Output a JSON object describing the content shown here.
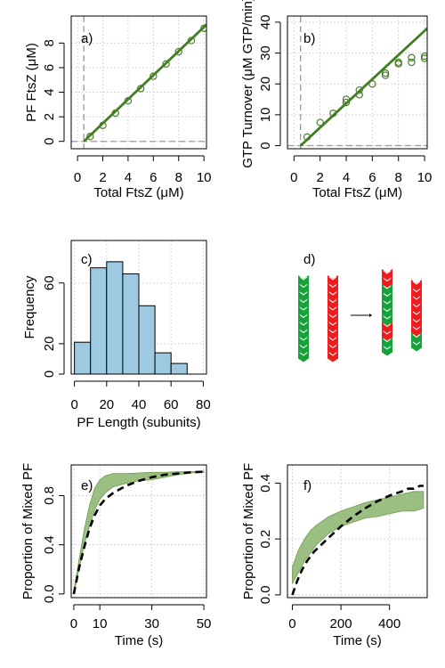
{
  "chart_data": [
    {
      "id": "a",
      "type": "scatter",
      "tag": "a)",
      "xlabel": "Total FtsZ (μM)",
      "ylabel": "PF FtsZ (μM)",
      "xlim": [
        -0.5,
        10.2
      ],
      "ylim": [
        -0.6,
        10.2
      ],
      "xticks": [
        0,
        2,
        4,
        6,
        8,
        10
      ],
      "yticks": [
        0,
        2,
        4,
        6,
        8
      ],
      "grid": true,
      "points": [
        [
          1,
          0.4
        ],
        [
          2,
          1.3
        ],
        [
          3,
          2.3
        ],
        [
          4,
          3.3
        ],
        [
          5,
          4.3
        ],
        [
          6,
          5.3
        ],
        [
          7,
          6.3
        ],
        [
          8,
          7.3
        ],
        [
          9,
          8.2
        ],
        [
          10,
          9.2
        ]
      ],
      "fit_line": [
        [
          0.5,
          0
        ],
        [
          10.2,
          9.5
        ]
      ],
      "vline_x": 0.5,
      "hline_y": 0,
      "colors": {
        "points": "#4a7d2a",
        "fit": "#3f7f1f",
        "ref": "#9a9a9a",
        "grid": "#d8d8d8"
      }
    },
    {
      "id": "b",
      "type": "scatter",
      "tag": "b)",
      "xlabel": "Total FtsZ (μM)",
      "ylabel": "GTP Turnover (μM GTP/min)",
      "xlim": [
        -0.5,
        10.2
      ],
      "ylim": [
        -1,
        42
      ],
      "xticks": [
        0,
        2,
        4,
        6,
        8,
        10
      ],
      "yticks": [
        0,
        10,
        20,
        30,
        40
      ],
      "grid": true,
      "points": [
        [
          1,
          2.8
        ],
        [
          2,
          7.5
        ],
        [
          3,
          10.5
        ],
        [
          4,
          14.0
        ],
        [
          4,
          15.0
        ],
        [
          5,
          16.5
        ],
        [
          5,
          18.0
        ],
        [
          6,
          20.0
        ],
        [
          7,
          22.8
        ],
        [
          7,
          23.5
        ],
        [
          8,
          26.5
        ],
        [
          8,
          27.0
        ],
        [
          9,
          27.0
        ],
        [
          9,
          28.5
        ],
        [
          10,
          28.3
        ],
        [
          10,
          29.0
        ]
      ],
      "fit_line": [
        [
          0.5,
          0
        ],
        [
          10.2,
          38
        ]
      ],
      "vline_x": 0.5,
      "hline_y": 0,
      "colors": {
        "points": "#4a7d2a",
        "fit": "#3f7f1f",
        "ref": "#9a9a9a",
        "grid": "#d8d8d8"
      }
    },
    {
      "id": "c",
      "type": "bar",
      "tag": "c)",
      "xlabel": "PF Length (subunits)",
      "ylabel": "Frequency",
      "xlim": [
        -2,
        82
      ],
      "ylim": [
        0,
        88
      ],
      "xticks": [
        0,
        20,
        40,
        60,
        80
      ],
      "yticks": [
        0,
        20,
        60
      ],
      "grid": true,
      "bin_edges": [
        0,
        10,
        20,
        30,
        40,
        50,
        60,
        70
      ],
      "values": [
        21,
        70,
        74,
        66,
        45,
        14,
        7
      ],
      "colors": {
        "bar": "#9ecae1",
        "edge": "#000000",
        "grid": "#d8d8d8"
      }
    },
    {
      "id": "e",
      "type": "line",
      "tag": "e)",
      "xlabel": "Time (s)",
      "ylabel": "Proportion of Mixed PF",
      "xlim": [
        -1,
        51
      ],
      "ylim": [
        -0.03,
        1.05
      ],
      "xticks": [
        0,
        10,
        30,
        50
      ],
      "yticks": [
        0.0,
        0.4,
        0.8
      ],
      "ytick_labels": [
        "0.0",
        "0.4",
        "0.8"
      ],
      "grid": true,
      "band_upper": [
        [
          0,
          0.02
        ],
        [
          2,
          0.28
        ],
        [
          4,
          0.52
        ],
        [
          6,
          0.72
        ],
        [
          8,
          0.86
        ],
        [
          10,
          0.93
        ],
        [
          12,
          0.96
        ],
        [
          15,
          0.98
        ],
        [
          20,
          0.98
        ],
        [
          25,
          0.985
        ],
        [
          30,
          0.99
        ],
        [
          35,
          0.99
        ],
        [
          40,
          0.995
        ],
        [
          45,
          0.995
        ],
        [
          50,
          1.0
        ]
      ],
      "band_lower": [
        [
          50,
          0.99
        ],
        [
          45,
          0.985
        ],
        [
          40,
          0.97
        ],
        [
          35,
          0.95
        ],
        [
          30,
          0.93
        ],
        [
          25,
          0.92
        ],
        [
          20,
          0.9
        ],
        [
          15,
          0.87
        ],
        [
          12,
          0.82
        ],
        [
          10,
          0.77
        ],
        [
          8,
          0.68
        ],
        [
          6,
          0.55
        ],
        [
          4,
          0.4
        ],
        [
          2,
          0.2
        ],
        [
          0,
          0.0
        ]
      ],
      "dashed_curve": [
        [
          0,
          0.0
        ],
        [
          2,
          0.21
        ],
        [
          4,
          0.38
        ],
        [
          6,
          0.53
        ],
        [
          8,
          0.64
        ],
        [
          10,
          0.72
        ],
        [
          12,
          0.77
        ],
        [
          15,
          0.82
        ],
        [
          20,
          0.88
        ],
        [
          25,
          0.92
        ],
        [
          30,
          0.95
        ],
        [
          35,
          0.97
        ],
        [
          40,
          0.98
        ],
        [
          45,
          0.99
        ],
        [
          50,
          0.995
        ]
      ],
      "colors": {
        "band": "#9bbf82",
        "band_edge": "#6f9f4f",
        "curve": "#000000",
        "grid": "#d8d8d8"
      }
    },
    {
      "id": "f",
      "type": "line",
      "tag": "f)",
      "xlabel": "Time (s)",
      "ylabel": "Proportion of Mixed PF",
      "xlim": [
        -20,
        555
      ],
      "ylim": [
        -0.01,
        0.465
      ],
      "xticks": [
        0,
        200,
        400
      ],
      "yticks": [
        0.0,
        0.2,
        0.4
      ],
      "ytick_labels": [
        "0.0",
        "0.2",
        "0.4"
      ],
      "grid": true,
      "band_upper": [
        [
          0,
          0.1
        ],
        [
          25,
          0.16
        ],
        [
          50,
          0.2
        ],
        [
          75,
          0.23
        ],
        [
          100,
          0.25
        ],
        [
          150,
          0.28
        ],
        [
          200,
          0.3
        ],
        [
          250,
          0.315
        ],
        [
          300,
          0.33
        ],
        [
          350,
          0.34
        ],
        [
          400,
          0.35
        ],
        [
          450,
          0.36
        ],
        [
          500,
          0.37
        ],
        [
          540,
          0.37
        ]
      ],
      "band_lower": [
        [
          540,
          0.31
        ],
        [
          500,
          0.3
        ],
        [
          450,
          0.3
        ],
        [
          400,
          0.29
        ],
        [
          350,
          0.28
        ],
        [
          300,
          0.275
        ],
        [
          250,
          0.26
        ],
        [
          200,
          0.245
        ],
        [
          150,
          0.22
        ],
        [
          100,
          0.18
        ],
        [
          75,
          0.15
        ],
        [
          50,
          0.12
        ],
        [
          25,
          0.08
        ],
        [
          0,
          0.04
        ]
      ],
      "dashed_curve": [
        [
          0,
          0.0
        ],
        [
          20,
          0.05
        ],
        [
          40,
          0.09
        ],
        [
          60,
          0.12
        ],
        [
          90,
          0.155
        ],
        [
          120,
          0.18
        ],
        [
          150,
          0.205
        ],
        [
          200,
          0.245
        ],
        [
          250,
          0.28
        ],
        [
          300,
          0.31
        ],
        [
          350,
          0.335
        ],
        [
          400,
          0.355
        ],
        [
          450,
          0.37
        ],
        [
          475,
          0.38
        ],
        [
          500,
          0.38
        ],
        [
          525,
          0.39
        ],
        [
          540,
          0.39
        ]
      ],
      "colors": {
        "band": "#9bbf82",
        "band_edge": "#6f9f4f",
        "curve": "#000000",
        "grid": "#d8d8d8"
      }
    }
  ],
  "schematic": {
    "tag": "d)",
    "left_green": [
      "g",
      "g",
      "g",
      "g",
      "g",
      "g",
      "g",
      "g",
      "g",
      "g",
      "g"
    ],
    "left_red": [
      "r",
      "r",
      "r",
      "r",
      "r",
      "r",
      "r",
      "r",
      "r",
      "r",
      "r"
    ],
    "right_mixed": [
      "r",
      "r",
      "g",
      "g",
      "g",
      "g",
      "g",
      "r",
      "r",
      "g",
      "g"
    ],
    "right_second": [
      "r",
      "r",
      "r",
      "r",
      "r",
      "r",
      "r",
      "g",
      "g"
    ],
    "colors": {
      "green": "#16a23a",
      "red": "#ee1c1c",
      "chevron": "#ffffff",
      "arrow": "#000000"
    }
  }
}
